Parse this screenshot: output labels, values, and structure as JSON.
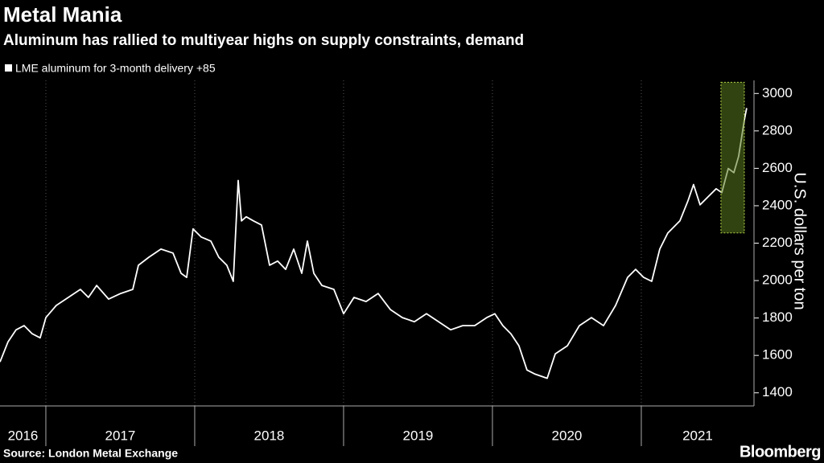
{
  "chart_data": {
    "type": "line",
    "title": "Metal Mania",
    "subtitle": "Aluminum has rallied to multiyear highs on supply constraints, demand",
    "y_label": "U.S. dollars per ton",
    "source": "Source: London Metal Exchange",
    "brand": "Bloomberg",
    "year_labels": [
      "2016",
      "2017",
      "2018",
      "2019",
      "2020",
      "2021"
    ],
    "xlim": [
      2016.692,
      2021.757
    ],
    "xticks": [
      2017,
      2018,
      2019,
      2020,
      2021
    ],
    "ylim": [
      1330,
      3070
    ],
    "yticks": [
      1400,
      1600,
      1800,
      2000,
      2200,
      2400,
      2600,
      2800,
      3000
    ],
    "grid": true,
    "highlight": {
      "xlim": [
        2021.535,
        2021.692
      ],
      "ylim": [
        2255,
        3060
      ],
      "color": "#5a7a1e"
    },
    "x": [
      2016.692,
      2016.746,
      2016.8,
      2016.854,
      2016.908,
      2016.962,
      2017.0,
      2017.07,
      2017.151,
      2017.232,
      2017.286,
      2017.341,
      2017.422,
      2017.503,
      2017.584,
      2017.622,
      2017.692,
      2017.773,
      2017.854,
      2017.908,
      2017.946,
      2017.989,
      2018.043,
      2018.108,
      2018.162,
      2018.216,
      2018.259,
      2018.292,
      2018.314,
      2018.346,
      2018.395,
      2018.449,
      2018.503,
      2018.557,
      2018.611,
      2018.665,
      2018.719,
      2018.757,
      2018.8,
      2018.854,
      2018.935,
      2019.0,
      2019.07,
      2019.151,
      2019.232,
      2019.314,
      2019.395,
      2019.476,
      2019.557,
      2019.638,
      2019.719,
      2019.8,
      2019.881,
      2019.962,
      2020.016,
      2020.07,
      2020.124,
      2020.178,
      2020.232,
      2020.286,
      2020.368,
      2020.422,
      2020.503,
      2020.584,
      2020.665,
      2020.746,
      2020.827,
      2020.908,
      2020.962,
      2021.016,
      2021.07,
      2021.124,
      2021.178,
      2021.259,
      2021.314,
      2021.351,
      2021.395,
      2021.449,
      2021.503,
      2021.541,
      2021.584,
      2021.622,
      2021.654,
      2021.692,
      2021.708
    ],
    "series": [
      {
        "name": "LME aluminum for 3-month delivery +85",
        "color": "#ffffff",
        "values": [
          1565,
          1673,
          1737,
          1759,
          1716,
          1694,
          1802,
          1867,
          1910,
          1953,
          1910,
          1974,
          1901,
          1931,
          1953,
          2082,
          2125,
          2168,
          2147,
          2039,
          2017,
          2276,
          2233,
          2211,
          2125,
          2082,
          1996,
          2535,
          2319,
          2341,
          2319,
          2297,
          2082,
          2104,
          2060,
          2168,
          2039,
          2211,
          2039,
          1974,
          1953,
          1823,
          1910,
          1888,
          1931,
          1845,
          1802,
          1780,
          1823,
          1780,
          1737,
          1759,
          1759,
          1802,
          1823,
          1759,
          1716,
          1651,
          1522,
          1500,
          1478,
          1608,
          1651,
          1759,
          1802,
          1759,
          1867,
          2017,
          2060,
          2017,
          1996,
          2168,
          2254,
          2319,
          2427,
          2513,
          2405,
          2448,
          2491,
          2470,
          2599,
          2577,
          2664,
          2858,
          2922
        ]
      }
    ]
  }
}
